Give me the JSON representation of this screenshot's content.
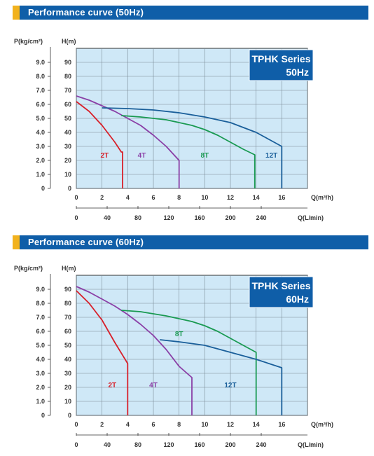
{
  "chart_data": [
    {
      "type": "line",
      "title": "Performance curve (50Hz)",
      "badge": [
        "TPHK Series",
        "50Hz"
      ],
      "left_axis_label": "P(kg/cm²)",
      "right_axis_label": "H(m)",
      "x_label": "Q(m³/h)",
      "x2_label": "Q(L/min)",
      "pressure_ticks": [
        "9.0",
        "8.0",
        "7.0",
        "6.0",
        "5.0",
        "4.0",
        "3.0",
        "2.0",
        "1.0",
        "0"
      ],
      "ylim": [
        0,
        100
      ],
      "head_ticks": [
        90,
        80,
        70,
        60,
        50,
        40,
        30,
        20,
        10,
        0
      ],
      "xlim": [
        0,
        18
      ],
      "x_ticks": [
        0,
        2,
        4,
        6,
        8,
        10,
        12,
        14,
        16
      ],
      "lmin_ticks": [
        0,
        40,
        80,
        120,
        160,
        200,
        240
      ],
      "grid": true,
      "series": [
        {
          "name": "2T",
          "color": "#d8202a",
          "label_at": [
            2.2,
            24
          ],
          "points": [
            [
              0,
              62
            ],
            [
              1,
              55
            ],
            [
              2,
              45
            ],
            [
              3,
              33
            ],
            [
              3.5,
              26
            ],
            [
              3.6,
              26
            ],
            [
              3.6,
              0
            ]
          ]
        },
        {
          "name": "4T",
          "color": "#8a3fa6",
          "label_at": [
            5.1,
            24
          ],
          "points": [
            [
              0,
              66
            ],
            [
              1,
              63
            ],
            [
              2,
              59
            ],
            [
              3,
              55
            ],
            [
              4,
              50
            ],
            [
              5,
              45
            ],
            [
              6,
              38
            ],
            [
              7,
              30
            ],
            [
              8,
              20
            ],
            [
              8,
              0
            ]
          ]
        },
        {
          "name": "8T",
          "color": "#1a9a52",
          "label_at": [
            10,
            24
          ],
          "points": [
            [
              3.5,
              52
            ],
            [
              5,
              51
            ],
            [
              7,
              49
            ],
            [
              9,
              45
            ],
            [
              10,
              42
            ],
            [
              11,
              38
            ],
            [
              12,
              33
            ],
            [
              13,
              28
            ],
            [
              13.9,
              24
            ],
            [
              13.9,
              0
            ]
          ]
        },
        {
          "name": "12T",
          "color": "#1a5f9a",
          "label_at": [
            15.2,
            24
          ],
          "points": [
            [
              2,
              57.5
            ],
            [
              4,
              57
            ],
            [
              6,
              56
            ],
            [
              8,
              54
            ],
            [
              10,
              51
            ],
            [
              12,
              47
            ],
            [
              14,
              40
            ],
            [
              15.2,
              34
            ],
            [
              16,
              30
            ],
            [
              16,
              0
            ]
          ]
        }
      ]
    },
    {
      "type": "line",
      "title": "Performance curve (60Hz)",
      "badge": [
        "TPHK Series",
        "60Hz"
      ],
      "left_axis_label": "P(kg/cm²)",
      "right_axis_label": "H(m)",
      "x_label": "Q(m³/h)",
      "x2_label": "Q(L/min)",
      "pressure_ticks": [
        "9.0",
        "8.0",
        "7.0",
        "6.0",
        "5.0",
        "4.0",
        "3.0",
        "2.0",
        "1.0",
        "0"
      ],
      "ylim": [
        0,
        100
      ],
      "head_ticks": [
        90,
        80,
        70,
        60,
        50,
        40,
        30,
        20,
        10,
        0
      ],
      "xlim": [
        0,
        18
      ],
      "x_ticks": [
        0,
        2,
        4,
        6,
        8,
        10,
        12,
        14,
        16
      ],
      "lmin_ticks": [
        0,
        40,
        80,
        120,
        160,
        200,
        240
      ],
      "grid": true,
      "series": [
        {
          "name": "2T",
          "color": "#d8202a",
          "label_at": [
            2.8,
            22
          ],
          "points": [
            [
              0,
              89
            ],
            [
              1,
              80
            ],
            [
              2,
              68
            ],
            [
              3,
              52
            ],
            [
              4,
              37
            ],
            [
              4,
              0
            ]
          ]
        },
        {
          "name": "4T",
          "color": "#8a3fa6",
          "label_at": [
            6,
            22
          ],
          "points": [
            [
              0,
              92
            ],
            [
              1,
              88
            ],
            [
              2,
              83
            ],
            [
              3,
              78
            ],
            [
              4,
              72
            ],
            [
              5,
              65
            ],
            [
              6,
              57
            ],
            [
              7,
              47
            ],
            [
              8,
              35
            ],
            [
              9,
              27
            ],
            [
              9,
              0
            ]
          ]
        },
        {
          "name": "8T",
          "color": "#1a9a52",
          "label_at": [
            8,
            58.5
          ],
          "points": [
            [
              3.5,
              75
            ],
            [
              5,
              74
            ],
            [
              7,
              71
            ],
            [
              9,
              67
            ],
            [
              10,
              64
            ],
            [
              11,
              60
            ],
            [
              12,
              55
            ],
            [
              13,
              50
            ],
            [
              14,
              45
            ],
            [
              14,
              0
            ]
          ]
        },
        {
          "name": "12T",
          "color": "#1a5f9a",
          "label_at": [
            12,
            22
          ],
          "points": [
            [
              6.5,
              54
            ],
            [
              8,
              52.5
            ],
            [
              10,
              50
            ],
            [
              12,
              45
            ],
            [
              14,
              40
            ],
            [
              16,
              34
            ],
            [
              16,
              0
            ]
          ]
        }
      ]
    }
  ]
}
